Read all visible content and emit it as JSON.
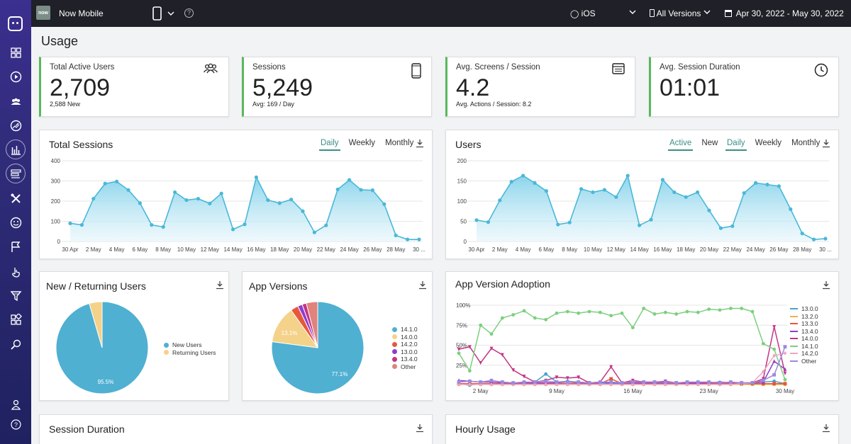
{
  "topbar": {
    "app_logo_text": "now",
    "app_name": "Now Mobile",
    "help": "?",
    "os": "iOS",
    "versions": "All Versions",
    "date_range": "Apr 30, 2022 - May 30, 2022"
  },
  "sidebar": {
    "icons": [
      "grid-icon",
      "play-icon",
      "users-icon",
      "gauge-icon",
      "bar-chart-icon",
      "list-icon",
      "tools-icon",
      "smiley-icon",
      "flag-icon",
      "pointer-icon",
      "funnel-icon",
      "widgets-icon",
      "search-key-icon",
      "user-icon",
      "help-icon"
    ]
  },
  "page": {
    "title": "Usage"
  },
  "stats": [
    {
      "label": "Total Active Users",
      "value": "2,709",
      "sub": "2,588 New",
      "icon": "users-icon"
    },
    {
      "label": "Sessions",
      "value": "5,249",
      "sub": "Avg: 169 / Day",
      "icon": "phone-icon"
    },
    {
      "label": "Avg. Screens / Session",
      "value": "4.2",
      "sub": "Avg. Actions / Session: 8.2",
      "icon": "screen-icon"
    },
    {
      "label": "Avg. Session Duration",
      "value": "01:01",
      "sub": "",
      "icon": "clock-icon"
    }
  ],
  "total_sessions": {
    "title": "Total Sessions",
    "tabs": [
      "Daily",
      "Weekly",
      "Monthly"
    ],
    "active_tab": "Daily"
  },
  "users_panel": {
    "title": "Users",
    "toggle": [
      "Active",
      "New"
    ],
    "tabs": [
      "Daily",
      "Weekly",
      "Monthly"
    ]
  },
  "new_returning": {
    "title": "New / Returning Users"
  },
  "app_versions": {
    "title": "App Versions"
  },
  "adoption": {
    "title": "App Version Adoption"
  },
  "session_duration": {
    "title": "Session Duration"
  },
  "hourly_usage": {
    "title": "Hourly Usage"
  },
  "chart_data": [
    {
      "type": "area",
      "title": "Total Sessions",
      "x_tick_labels": [
        "30 Apr",
        "2 May",
        "4 May",
        "6 May",
        "8 May",
        "10 May",
        "12 May",
        "14 May",
        "16 May",
        "18 May",
        "20 May",
        "22 May",
        "24 May",
        "26 May",
        "28 May",
        "30 ..."
      ],
      "ylim": [
        0,
        400
      ],
      "yticks": [
        0,
        100,
        200,
        300,
        400
      ],
      "values": [
        90,
        82,
        212,
        287,
        297,
        255,
        190,
        82,
        72,
        244,
        205,
        212,
        188,
        238,
        60,
        85,
        318,
        205,
        190,
        208,
        150,
        45,
        80,
        258,
        305,
        256,
        254,
        185,
        30,
        10,
        10
      ],
      "color": "#4ab8d8"
    },
    {
      "type": "area",
      "title": "Users",
      "x_tick_labels": [
        "30 Apr",
        "2 May",
        "4 May",
        "6 May",
        "8 May",
        "10 May",
        "12 May",
        "14 May",
        "16 May",
        "18 May",
        "20 May",
        "22 May",
        "24 May",
        "26 May",
        "28 May",
        "30 ..."
      ],
      "ylim": [
        0,
        200
      ],
      "yticks": [
        0,
        50,
        100,
        150,
        200
      ],
      "values": [
        53,
        48,
        102,
        148,
        163,
        145,
        125,
        42,
        47,
        130,
        122,
        128,
        110,
        163,
        40,
        54,
        153,
        122,
        110,
        122,
        77,
        33,
        38,
        120,
        145,
        141,
        137,
        80,
        20,
        5,
        7
      ],
      "color": "#4ab8d8"
    },
    {
      "type": "pie",
      "title": "New / Returning Users",
      "labels": [
        "New Users",
        "Returning Users"
      ],
      "values": [
        95.5,
        4.5
      ],
      "slice_labels": [
        "95.5%",
        ""
      ],
      "colors": [
        "#4fb0d2",
        "#f5d28a"
      ]
    },
    {
      "type": "pie",
      "title": "App Versions",
      "labels": [
        "14.1.0",
        "14.0.0",
        "14.2.0",
        "13.0.0",
        "13.4.0",
        "Other"
      ],
      "values": [
        77.1,
        13.1,
        2.7,
        1.6,
        1.5,
        4.0
      ],
      "slice_labels": [
        "77.1%",
        "13.1%",
        "",
        "",
        "",
        ""
      ],
      "colors": [
        "#4fb0d2",
        "#f5d28a",
        "#e8573a",
        "#8b3fd0",
        "#c23585",
        "#e0837c"
      ]
    },
    {
      "type": "line",
      "title": "App Version Adoption",
      "x_tick_labels": [
        "2 May",
        "9 May",
        "16 May",
        "23 May",
        "30 May"
      ],
      "y_tick_labels": [
        "100%",
        "75%",
        "50%",
        "25%"
      ],
      "ylim": [
        0,
        100
      ],
      "series": [
        {
          "name": "13.0.0",
          "color": "#4aa3c8",
          "marker": "circle",
          "values": [
            2,
            0,
            2,
            2,
            2,
            2,
            2,
            4,
            14,
            4,
            5,
            4,
            3,
            3,
            2,
            2,
            3,
            4,
            3,
            2,
            3,
            2,
            2,
            2,
            2,
            2,
            2,
            3,
            4,
            5,
            2
          ]
        },
        {
          "name": "13.2.0",
          "color": "#f0b24a",
          "marker": "circle",
          "values": [
            1,
            1,
            1,
            1,
            1,
            1,
            1,
            1,
            1,
            1,
            1,
            1,
            1,
            1,
            1,
            1,
            1,
            1,
            1,
            1,
            1,
            1,
            1,
            1,
            1,
            1,
            1,
            1,
            1,
            1,
            1
          ]
        },
        {
          "name": "13.3.0",
          "color": "#e8573a",
          "marker": "square",
          "values": [
            2,
            2,
            2,
            2,
            2,
            2,
            2,
            2,
            2,
            2,
            2,
            2,
            2,
            2,
            8,
            2,
            2,
            2,
            2,
            2,
            2,
            2,
            2,
            2,
            2,
            2,
            2,
            2,
            2,
            2,
            2
          ]
        },
        {
          "name": "13.4.0",
          "color": "#8b3fd0",
          "marker": "triangle",
          "values": [
            6,
            5,
            4,
            4,
            3,
            3,
            3,
            3,
            3,
            3,
            4,
            3,
            3,
            3,
            3,
            3,
            3,
            3,
            3,
            3,
            3,
            3,
            3,
            3,
            4,
            3,
            3,
            3,
            4,
            30,
            20
          ]
        },
        {
          "name": "14.0.0",
          "color": "#c23585",
          "marker": "triangle-down",
          "values": [
            45,
            48,
            28,
            46,
            38,
            19,
            11,
            4,
            6,
            10,
            9,
            10,
            3,
            4,
            23,
            3,
            6,
            4,
            4,
            5,
            3,
            2,
            2,
            3,
            3,
            3,
            3,
            3,
            8,
            73,
            15
          ]
        },
        {
          "name": "14.1.0",
          "color": "#7ccf7e",
          "marker": "circle",
          "values": [
            40,
            18,
            75,
            64,
            84,
            88,
            93,
            84,
            82,
            90,
            92,
            90,
            92,
            91,
            87,
            90,
            72,
            96,
            89,
            91,
            89,
            92,
            91,
            95,
            94,
            96,
            96,
            92,
            52,
            45,
            7
          ]
        },
        {
          "name": "14.2.0",
          "color": "#f0a6c0",
          "marker": "diamond",
          "values": [
            1,
            1,
            1,
            1,
            1,
            1,
            1,
            1,
            1,
            1,
            1,
            1,
            1,
            1,
            1,
            1,
            1,
            1,
            1,
            1,
            1,
            1,
            1,
            1,
            1,
            1,
            2,
            3,
            17,
            37,
            40
          ]
        },
        {
          "name": "Other",
          "color": "#9b8ae0",
          "marker": "square",
          "values": [
            4,
            5,
            4,
            6,
            4,
            3,
            4,
            4,
            5,
            4,
            4,
            4,
            3,
            4,
            4,
            3,
            4,
            4,
            4,
            4,
            3,
            4,
            4,
            4,
            3,
            4,
            3,
            3,
            6,
            13,
            48
          ]
        }
      ]
    }
  ]
}
